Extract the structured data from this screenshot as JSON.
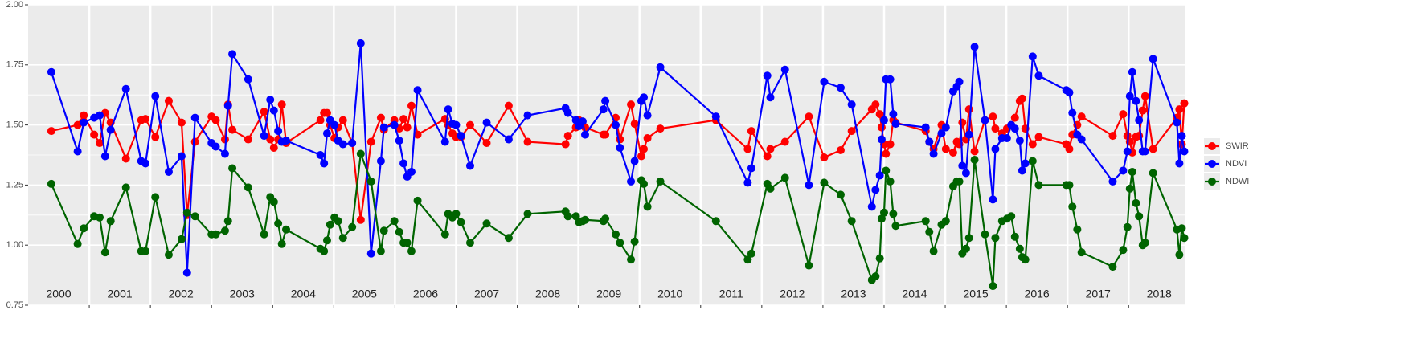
{
  "chart_data": {
    "type": "line",
    "x": [
      2000.38,
      2000.81,
      2000.91,
      2001.08,
      2001.17,
      2001.26,
      2001.35,
      2001.6,
      2001.85,
      2001.92,
      2002.08,
      2002.3,
      2002.51,
      2002.6,
      2002.73,
      2003.0,
      2003.07,
      2003.22,
      2003.27,
      2003.34,
      2003.6,
      2003.86,
      2003.96,
      2004.02,
      2004.09,
      2004.15,
      2004.22,
      2004.78,
      2004.84,
      2004.89,
      2004.94,
      2005.01,
      2005.07,
      2005.15,
      2005.3,
      2005.44,
      2005.61,
      2005.77,
      2005.82,
      2005.99,
      2006.07,
      2006.14,
      2006.2,
      2006.27,
      2006.37,
      2006.82,
      2006.87,
      2006.94,
      2007.0,
      2007.08,
      2007.23,
      2007.5,
      2007.86,
      2008.17,
      2008.79,
      2008.83,
      2008.96,
      2009.01,
      2009.07,
      2009.11,
      2009.41,
      2009.44,
      2009.61,
      2009.68,
      2009.86,
      2009.92,
      2010.03,
      2010.07,
      2010.13,
      2010.34,
      2011.25,
      2011.77,
      2011.83,
      2012.09,
      2012.14,
      2012.38,
      2012.77,
      2013.02,
      2013.29,
      2013.47,
      2013.8,
      2013.86,
      2013.93,
      2013.96,
      2014.0,
      2014.03,
      2014.1,
      2014.15,
      2014.19,
      2014.68,
      2014.74,
      2014.81,
      2014.94,
      2015.01,
      2015.13,
      2015.19,
      2015.23,
      2015.28,
      2015.34,
      2015.39,
      2015.48,
      2015.65,
      2015.78,
      2015.82,
      2015.93,
      2016.01,
      2016.08,
      2016.14,
      2016.22,
      2016.26,
      2016.31,
      2016.43,
      2016.53,
      2016.98,
      2017.03,
      2017.08,
      2017.16,
      2017.23,
      2017.74,
      2017.91,
      2017.98,
      2018.02,
      2018.06,
      2018.12,
      2018.17,
      2018.23,
      2018.27,
      2018.4,
      2018.79,
      2018.83,
      2018.87,
      2018.91
    ],
    "series": [
      {
        "name": "SWIR",
        "color": "#ff0000",
        "values": [
          1.475,
          1.5,
          1.54,
          1.46,
          1.425,
          1.55,
          1.51,
          1.36,
          1.52,
          1.525,
          1.45,
          1.6,
          1.51,
          1.125,
          1.43,
          1.535,
          1.52,
          1.44,
          1.585,
          1.48,
          1.44,
          1.555,
          1.44,
          1.405,
          1.44,
          1.585,
          1.425,
          1.52,
          1.55,
          1.55,
          1.5,
          1.445,
          1.49,
          1.52,
          1.425,
          1.105,
          1.43,
          1.53,
          1.48,
          1.52,
          1.485,
          1.525,
          1.49,
          1.58,
          1.46,
          1.525,
          1.5,
          1.465,
          1.45,
          1.45,
          1.5,
          1.425,
          1.58,
          1.43,
          1.42,
          1.455,
          1.49,
          1.52,
          1.5,
          1.49,
          1.46,
          1.46,
          1.53,
          1.44,
          1.585,
          1.505,
          1.37,
          1.4,
          1.445,
          1.485,
          1.52,
          1.4,
          1.475,
          1.37,
          1.4,
          1.43,
          1.535,
          1.365,
          1.395,
          1.475,
          1.565,
          1.585,
          1.545,
          1.49,
          1.42,
          1.38,
          1.42,
          1.52,
          1.51,
          1.475,
          1.43,
          1.4,
          1.5,
          1.4,
          1.385,
          1.43,
          1.42,
          1.51,
          1.44,
          1.565,
          1.39,
          1.52,
          1.535,
          1.485,
          1.465,
          1.485,
          1.5,
          1.53,
          1.6,
          1.61,
          1.485,
          1.42,
          1.45,
          1.42,
          1.4,
          1.46,
          1.5,
          1.535,
          1.455,
          1.545,
          1.455,
          1.43,
          1.385,
          1.45,
          1.455,
          1.56,
          1.62,
          1.4,
          1.53,
          1.565,
          1.42,
          1.59
        ]
      },
      {
        "name": "NDVI",
        "color": "#0000ff",
        "values": [
          1.72,
          1.39,
          1.51,
          1.53,
          1.54,
          1.37,
          1.48,
          1.65,
          1.35,
          1.34,
          1.62,
          1.305,
          1.37,
          0.885,
          1.53,
          1.425,
          1.41,
          1.38,
          1.58,
          1.795,
          1.69,
          1.455,
          1.605,
          1.56,
          1.475,
          1.43,
          1.435,
          1.375,
          1.34,
          1.465,
          1.52,
          1.5,
          1.435,
          1.42,
          1.425,
          1.84,
          0.965,
          1.35,
          1.49,
          1.5,
          1.435,
          1.34,
          1.285,
          1.305,
          1.645,
          1.43,
          1.565,
          1.505,
          1.5,
          1.455,
          1.33,
          1.51,
          1.44,
          1.54,
          1.57,
          1.55,
          1.52,
          1.495,
          1.515,
          1.46,
          1.565,
          1.6,
          1.5,
          1.405,
          1.265,
          1.35,
          1.6,
          1.615,
          1.54,
          1.74,
          1.535,
          1.26,
          1.32,
          1.705,
          1.615,
          1.73,
          1.25,
          1.68,
          1.655,
          1.585,
          1.16,
          1.23,
          1.29,
          1.44,
          1.52,
          1.69,
          1.69,
          1.545,
          1.505,
          1.49,
          1.43,
          1.38,
          1.465,
          1.49,
          1.64,
          1.66,
          1.68,
          1.33,
          1.3,
          1.46,
          1.825,
          1.52,
          1.19,
          1.4,
          1.445,
          1.445,
          1.5,
          1.485,
          1.435,
          1.31,
          1.34,
          1.785,
          1.705,
          1.645,
          1.635,
          1.55,
          1.46,
          1.44,
          1.265,
          1.31,
          1.39,
          1.62,
          1.72,
          1.6,
          1.52,
          1.39,
          1.39,
          1.775,
          1.51,
          1.34,
          1.455,
          1.39
        ]
      },
      {
        "name": "NDWI",
        "color": "#006400",
        "values": [
          1.255,
          1.005,
          1.07,
          1.12,
          1.115,
          0.97,
          1.1,
          1.24,
          0.975,
          0.975,
          1.2,
          0.96,
          1.025,
          1.135,
          1.12,
          1.045,
          1.045,
          1.06,
          1.1,
          1.32,
          1.24,
          1.045,
          1.2,
          1.18,
          1.09,
          1.005,
          1.065,
          0.985,
          0.975,
          1.02,
          1.085,
          1.115,
          1.1,
          1.03,
          1.075,
          1.38,
          1.265,
          0.975,
          1.06,
          1.1,
          1.055,
          1.01,
          1.01,
          0.975,
          1.185,
          1.045,
          1.13,
          1.115,
          1.13,
          1.095,
          1.01,
          1.09,
          1.03,
          1.13,
          1.14,
          1.12,
          1.12,
          1.095,
          1.1,
          1.105,
          1.1,
          1.11,
          1.045,
          1.01,
          0.94,
          1.015,
          1.27,
          1.255,
          1.16,
          1.265,
          1.1,
          0.94,
          0.965,
          1.255,
          1.235,
          1.28,
          0.915,
          1.26,
          1.21,
          1.1,
          0.855,
          0.87,
          0.945,
          1.11,
          1.135,
          1.31,
          1.265,
          1.13,
          1.08,
          1.1,
          1.055,
          0.975,
          1.085,
          1.1,
          1.245,
          1.265,
          1.265,
          0.965,
          0.985,
          1.03,
          1.355,
          1.045,
          0.83,
          1.03,
          1.1,
          1.11,
          1.12,
          1.035,
          0.985,
          0.95,
          0.94,
          1.35,
          1.25,
          1.25,
          1.25,
          1.16,
          1.065,
          0.97,
          0.91,
          0.98,
          1.075,
          1.235,
          1.305,
          1.175,
          1.12,
          1.0,
          1.01,
          1.3,
          1.065,
          0.96,
          1.07,
          1.03
        ]
      }
    ],
    "xlim": [
      2000,
      2018.93
    ],
    "xticks": [
      2001,
      2002,
      2003,
      2004,
      2005,
      2006,
      2007,
      2008,
      2009,
      2010,
      2011,
      2012,
      2013,
      2014,
      2015,
      2016,
      2017,
      2018
    ],
    "year_labels": [
      {
        "value": 2000.5,
        "label": "2000"
      },
      {
        "value": 2001.5,
        "label": "2001"
      },
      {
        "value": 2002.5,
        "label": "2002"
      },
      {
        "value": 2003.5,
        "label": "2003"
      },
      {
        "value": 2004.5,
        "label": "2004"
      },
      {
        "value": 2005.5,
        "label": "2005"
      },
      {
        "value": 2006.5,
        "label": "2006"
      },
      {
        "value": 2007.5,
        "label": "2007"
      },
      {
        "value": 2008.5,
        "label": "2008"
      },
      {
        "value": 2009.5,
        "label": "2009"
      },
      {
        "value": 2010.5,
        "label": "2010"
      },
      {
        "value": 2011.5,
        "label": "2011"
      },
      {
        "value": 2012.5,
        "label": "2012"
      },
      {
        "value": 2013.5,
        "label": "2013"
      },
      {
        "value": 2014.5,
        "label": "2014"
      },
      {
        "value": 2015.5,
        "label": "2015"
      },
      {
        "value": 2016.5,
        "label": "2016"
      },
      {
        "value": 2017.5,
        "label": "2017"
      },
      {
        "value": 2018.5,
        "label": "2018"
      }
    ],
    "ylim": [
      0.75,
      2.0
    ],
    "yticks": [
      0.75,
      {
        "value": 1.0,
        "label": "1.00"
      },
      1.25,
      {
        "value": 1.5,
        "label": "1.50"
      },
      1.75,
      {
        "value": 2.0,
        "label": "2.00"
      }
    ],
    "yminor": [
      0.875,
      1.125,
      1.375,
      1.625,
      1.875
    ],
    "grid": true,
    "legend": "right"
  }
}
